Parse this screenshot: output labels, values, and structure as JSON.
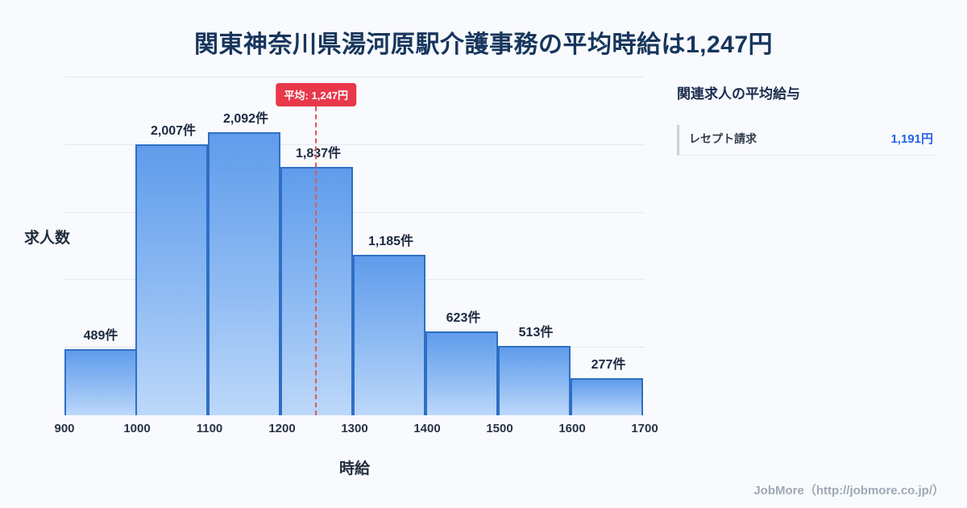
{
  "page": {
    "title": "関東神奈川県湯河原駅介護事務の平均時給は1,247円",
    "footer": "JobMore（http://jobmore.co.jp/）"
  },
  "chart_data": {
    "type": "bar",
    "title": "関東神奈川県湯河原駅介護事務の平均時給は1,247円",
    "xlabel": "時給",
    "ylabel": "求人数",
    "bin_edges": [
      900,
      1000,
      1100,
      1200,
      1300,
      1400,
      1500,
      1600,
      1700
    ],
    "tick_labels": [
      "900",
      "1000",
      "1100",
      "1200",
      "1300",
      "1400",
      "1500",
      "1600",
      "1700"
    ],
    "categories": [
      "900-1000",
      "1000-1100",
      "1100-1200",
      "1200-1300",
      "1300-1400",
      "1400-1500",
      "1500-1600",
      "1600-1700"
    ],
    "values": [
      489,
      2007,
      2092,
      1837,
      1185,
      623,
      513,
      277
    ],
    "bar_labels": [
      "489件",
      "2,007件",
      "2,092件",
      "1,837件",
      "1,185件",
      "623件",
      "513件",
      "277件"
    ],
    "ylim": [
      0,
      2500
    ],
    "grid_step": 500,
    "grid": true,
    "legend": false,
    "average": {
      "value": 1247,
      "label": "平均: 1,247円"
    },
    "colors": {
      "bar_top": "#5f9ceb",
      "bar_bottom": "#bdd8fa",
      "bar_border": "#2e6fc4",
      "average_line": "#e25555",
      "badge_bg": "#e8384a",
      "title_text": "#17365d",
      "value_text": "#2563eb"
    }
  },
  "sidebar": {
    "title": "関連求人の平均給与",
    "items": [
      {
        "label": "レセプト請求",
        "value": "1,191円"
      }
    ]
  }
}
